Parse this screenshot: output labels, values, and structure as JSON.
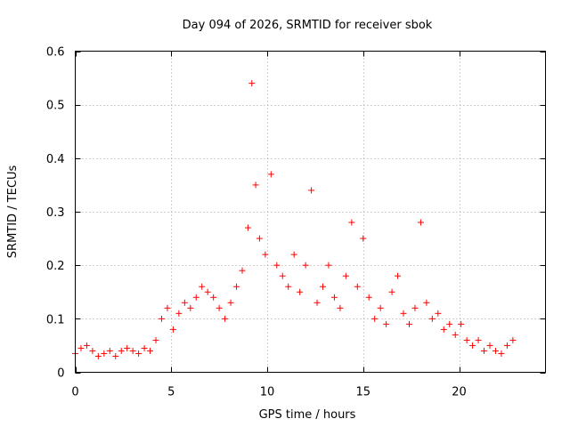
{
  "chart_data": {
    "type": "scatter",
    "title": "Day 094 of 2026, SRMTID for receiver sbok",
    "xlabel": "GPS time / hours",
    "ylabel": "SRMTID / TECUs",
    "xlim": [
      0,
      24.5
    ],
    "ylim": [
      0,
      0.6
    ],
    "xticks": [
      0,
      5,
      10,
      15,
      20
    ],
    "xtick_labels": [
      "0",
      "5",
      "10",
      "15",
      "20"
    ],
    "yticks": [
      0,
      0.1,
      0.2,
      0.3,
      0.4,
      0.5,
      0.6
    ],
    "ytick_labels": [
      "0",
      "0.1",
      "0.2",
      "0.3",
      "0.4",
      "0.5",
      "0.6"
    ],
    "grid": true,
    "marker": "+",
    "marker_color": "#ff0000",
    "series": [
      {
        "name": "SRMTID",
        "x": [
          0.0,
          0.3,
          0.6,
          0.9,
          1.2,
          1.5,
          1.8,
          2.1,
          2.4,
          2.7,
          3.0,
          3.3,
          3.6,
          3.9,
          4.2,
          4.5,
          4.8,
          5.1,
          5.4,
          5.7,
          6.0,
          6.3,
          6.6,
          6.9,
          7.2,
          7.5,
          7.8,
          8.1,
          8.4,
          8.7,
          9.0,
          9.2,
          9.4,
          9.6,
          9.9,
          10.2,
          10.5,
          10.8,
          11.1,
          11.4,
          11.7,
          12.0,
          12.3,
          12.6,
          12.9,
          13.2,
          13.5,
          13.8,
          14.1,
          14.4,
          14.7,
          15.0,
          15.3,
          15.6,
          15.9,
          16.2,
          16.5,
          16.8,
          17.1,
          17.4,
          17.7,
          18.0,
          18.3,
          18.6,
          18.9,
          19.2,
          19.5,
          19.8,
          20.1,
          20.4,
          20.7,
          21.0,
          21.3,
          21.6,
          21.9,
          22.2,
          22.5,
          22.8
        ],
        "y": [
          0.035,
          0.045,
          0.05,
          0.04,
          0.03,
          0.035,
          0.04,
          0.03,
          0.04,
          0.045,
          0.04,
          0.035,
          0.045,
          0.04,
          0.06,
          0.1,
          0.12,
          0.08,
          0.11,
          0.13,
          0.12,
          0.14,
          0.16,
          0.15,
          0.14,
          0.12,
          0.1,
          0.13,
          0.16,
          0.19,
          0.27,
          0.54,
          0.35,
          0.25,
          0.22,
          0.37,
          0.2,
          0.18,
          0.16,
          0.22,
          0.15,
          0.2,
          0.34,
          0.13,
          0.16,
          0.2,
          0.14,
          0.12,
          0.18,
          0.28,
          0.16,
          0.25,
          0.14,
          0.1,
          0.12,
          0.09,
          0.15,
          0.18,
          0.11,
          0.09,
          0.12,
          0.28,
          0.13,
          0.1,
          0.11,
          0.08,
          0.09,
          0.07,
          0.09,
          0.06,
          0.05,
          0.06,
          0.04,
          0.05,
          0.04,
          0.035,
          0.05,
          0.06
        ]
      }
    ]
  }
}
